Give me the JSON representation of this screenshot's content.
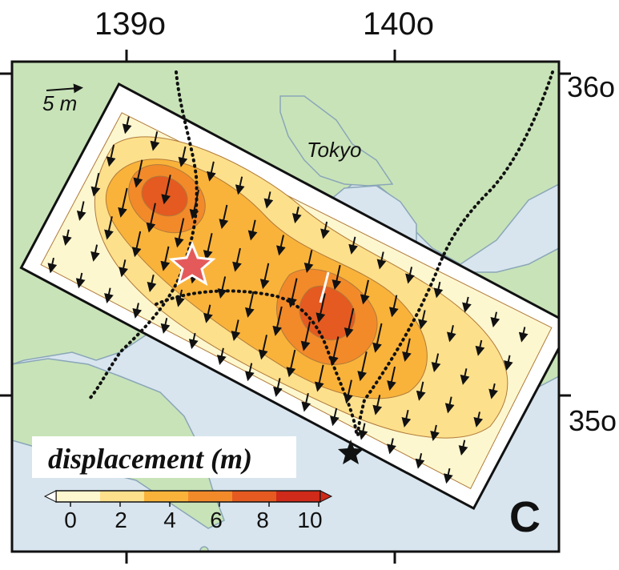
{
  "map": {
    "top_ticks": [
      "139o",
      "140o"
    ],
    "right_ticks": [
      "36o",
      "35o"
    ],
    "city_label": "Tokyo",
    "scale_arrow_label": "5 m",
    "panel_letter": "C",
    "legend": {
      "title": "displacement (m)",
      "tick_labels": [
        "0",
        "2",
        "4",
        "6",
        "8",
        "10"
      ],
      "colors": [
        "#fdf7cf",
        "#fde08c",
        "#f9b33a",
        "#f28a2a",
        "#e45a20",
        "#cf2a1a"
      ]
    },
    "colors": {
      "land": "#c8e3b8",
      "sea": "#d8e5ee",
      "coast": "#8aa6b8",
      "rupture_outline": "#111111",
      "epicenter_star": "#e45a5a",
      "black_star": "#111111"
    },
    "icons": {
      "epicenter": "red-star-icon",
      "station": "black-star-icon",
      "scale": "arrow-icon"
    }
  }
}
